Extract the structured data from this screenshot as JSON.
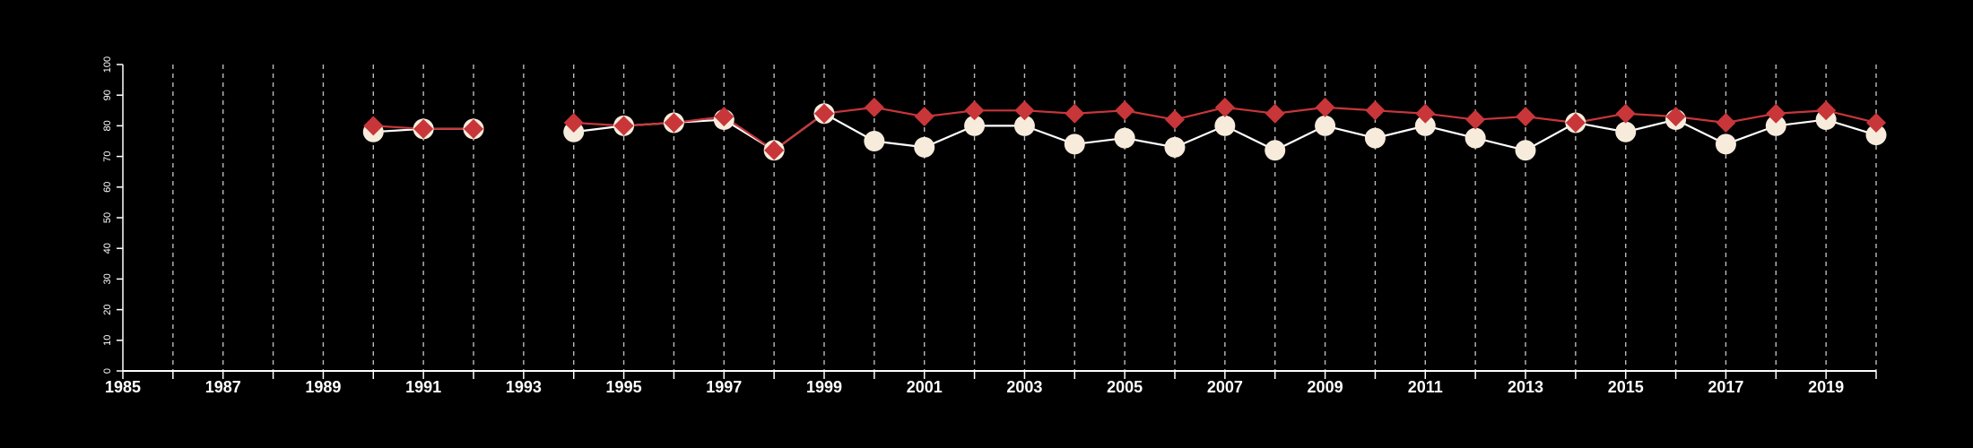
{
  "chart_data": {
    "type": "line",
    "title": "",
    "xlabel": "",
    "ylabel": "",
    "xlim": [
      1985,
      2020
    ],
    "ylim": [
      0,
      100
    ],
    "x_tick_labels": [
      "1985",
      "1987",
      "1989",
      "1991",
      "1993",
      "1995",
      "1997",
      "1999",
      "2001",
      "2003",
      "2005",
      "2007",
      "2009",
      "2011",
      "2013",
      "2015",
      "2017",
      "2019"
    ],
    "y_tick_labels": [
      "0",
      "10",
      "20",
      "30",
      "40",
      "50",
      "60",
      "70",
      "80",
      "90",
      "100"
    ],
    "grid": {
      "vertical_dashed": true,
      "horizontal": false
    },
    "colors": {
      "background": "#000000",
      "axis": "#ffffff",
      "grid": "#bbbbbb",
      "series_white_line": "#ffffff",
      "series_white_marker": "#f7ecdc",
      "series_red": "#c8363a"
    },
    "series": [
      {
        "marker": "circle",
        "color": "#f7ecdc",
        "line_color": "#ffffff",
        "x": [
          1990,
          1991,
          1992,
          1994,
          1995,
          1996,
          1997,
          1998,
          1999,
          2000,
          2001,
          2002,
          2003,
          2004,
          2005,
          2006,
          2007,
          2008,
          2009,
          2010,
          2011,
          2012,
          2013,
          2014,
          2015,
          2016,
          2017,
          2018,
          2019,
          2020
        ],
        "values": [
          78,
          79,
          79,
          78,
          80,
          81,
          82,
          72,
          84,
          75,
          73,
          80,
          80,
          74,
          76,
          73,
          80,
          72,
          80,
          76,
          80,
          76,
          72,
          81,
          78,
          82,
          74,
          80,
          82,
          77
        ]
      },
      {
        "marker": "diamond",
        "color": "#c8363a",
        "line_color": "#c8363a",
        "x": [
          1990,
          1991,
          1992,
          1994,
          1995,
          1996,
          1997,
          1998,
          1999,
          2000,
          2001,
          2002,
          2003,
          2004,
          2005,
          2006,
          2007,
          2008,
          2009,
          2010,
          2011,
          2012,
          2013,
          2014,
          2015,
          2016,
          2017,
          2018,
          2019,
          2020
        ],
        "values": [
          80,
          79,
          79,
          81,
          80,
          81,
          83,
          72,
          84,
          86,
          83,
          85,
          85,
          84,
          85,
          82,
          86,
          84,
          86,
          85,
          84,
          82,
          83,
          81,
          84,
          83,
          81,
          84,
          85,
          81
        ]
      }
    ]
  }
}
